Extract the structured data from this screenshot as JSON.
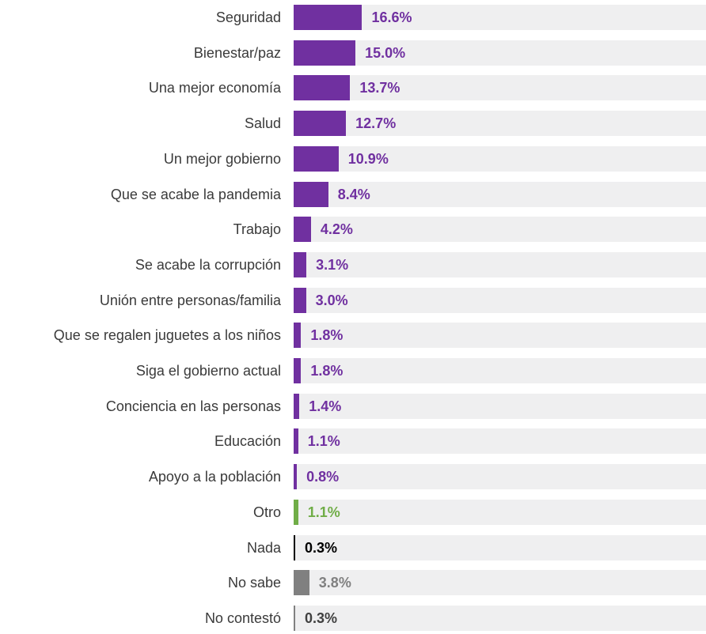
{
  "chart_data": {
    "type": "bar",
    "orientation": "horizontal",
    "categories": [
      "Seguridad",
      "Bienestar/paz",
      "Una mejor economía",
      "Salud",
      "Un mejor gobierno",
      "Que se acabe la pandemia",
      "Trabajo",
      "Se acabe la corrupción",
      "Unión entre personas/familia",
      "Que se regalen juguetes a los niños",
      "Siga el gobierno actual",
      "Conciencia en las personas",
      "Educación",
      "Apoyo a la población",
      "Otro",
      "Nada",
      "No sabe",
      "No contestó"
    ],
    "values": [
      16.6,
      15.0,
      13.7,
      12.7,
      10.9,
      8.4,
      4.2,
      3.1,
      3.0,
      1.8,
      1.8,
      1.4,
      1.1,
      0.8,
      1.1,
      0.3,
      3.8,
      0.3
    ],
    "value_labels": [
      "16.6%",
      "15.0%",
      "13.7%",
      "12.7%",
      "10.9%",
      "8.4%",
      "4.2%",
      "3.1%",
      "3.0%",
      "1.8%",
      "1.8%",
      "1.4%",
      "1.1%",
      "0.8%",
      "1.1%",
      "0.3%",
      "3.8%",
      "0.3%"
    ],
    "bar_colors": [
      "#7030a0",
      "#7030a0",
      "#7030a0",
      "#7030a0",
      "#7030a0",
      "#7030a0",
      "#7030a0",
      "#7030a0",
      "#7030a0",
      "#7030a0",
      "#7030a0",
      "#7030a0",
      "#7030a0",
      "#7030a0",
      "#70ad47",
      "#000000",
      "#808080",
      "#808080"
    ],
    "label_colors": [
      "#7030a0",
      "#7030a0",
      "#7030a0",
      "#7030a0",
      "#7030a0",
      "#7030a0",
      "#7030a0",
      "#7030a0",
      "#7030a0",
      "#7030a0",
      "#7030a0",
      "#7030a0",
      "#7030a0",
      "#7030a0",
      "#70ad47",
      "#000000",
      "#808080",
      "#404040"
    ],
    "track_color": "#efeff0",
    "xlim": [
      0,
      100
    ],
    "grid": false,
    "legend": "none"
  }
}
